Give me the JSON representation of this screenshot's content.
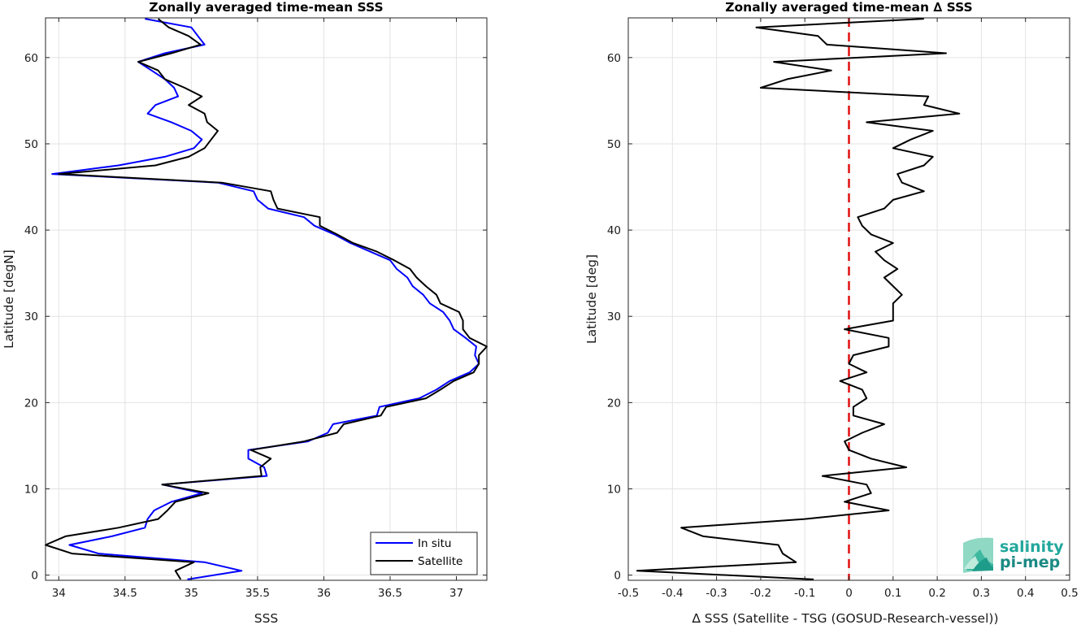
{
  "logo": {
    "line1": "salinity",
    "line2": "pi-mep"
  },
  "chart_data": [
    {
      "type": "line",
      "title": "Zonally averaged time-mean SSS",
      "xlabel": "SSS",
      "ylabel": "Latitude [degN]",
      "xlim": [
        33.9,
        37.23
      ],
      "ylim": [
        -0.6,
        64.6
      ],
      "xticks": [
        34,
        34.5,
        35,
        35.5,
        36,
        36.5,
        37
      ],
      "xtick_labels": [
        "34",
        "34.5",
        "35",
        "35.5",
        "36",
        "36.5",
        "37"
      ],
      "yticks": [
        0,
        10,
        20,
        30,
        40,
        50,
        60
      ],
      "ytick_labels": [
        "0",
        "10",
        "20",
        "30",
        "40",
        "50",
        "60"
      ],
      "grid": true,
      "legend": "bottom-right",
      "series": [
        {
          "name": "In situ",
          "color": "#0000ff",
          "points": [
            [
              34.97,
              -0.5
            ],
            [
              35.38,
              0.5
            ],
            [
              35.1,
              1.5
            ],
            [
              34.3,
              2.5
            ],
            [
              34.08,
              3.5
            ],
            [
              34.4,
              4.5
            ],
            [
              34.65,
              5.5
            ],
            [
              34.67,
              6.5
            ],
            [
              34.72,
              7.5
            ],
            [
              34.85,
              8.5
            ],
            [
              35.08,
              9.5
            ],
            [
              34.78,
              10.5
            ],
            [
              35.57,
              11.5
            ],
            [
              35.55,
              12.5
            ],
            [
              35.43,
              13.5
            ],
            [
              35.43,
              14.5
            ],
            [
              35.88,
              15.5
            ],
            [
              36.03,
              16.5
            ],
            [
              36.07,
              17.5
            ],
            [
              36.4,
              18.5
            ],
            [
              36.42,
              19.5
            ],
            [
              36.72,
              20.5
            ],
            [
              36.85,
              21.5
            ],
            [
              36.95,
              22.5
            ],
            [
              37.1,
              23.5
            ],
            [
              37.17,
              24.5
            ],
            [
              37.14,
              25.5
            ],
            [
              37.15,
              26.5
            ],
            [
              37.07,
              27.5
            ],
            [
              36.98,
              28.5
            ],
            [
              36.95,
              29.5
            ],
            [
              36.9,
              30.5
            ],
            [
              36.8,
              31.5
            ],
            [
              36.75,
              32.5
            ],
            [
              36.67,
              33.5
            ],
            [
              36.63,
              34.5
            ],
            [
              36.55,
              35.5
            ],
            [
              36.5,
              36.5
            ],
            [
              36.35,
              37.5
            ],
            [
              36.2,
              38.5
            ],
            [
              36.08,
              39.5
            ],
            [
              35.93,
              40.5
            ],
            [
              35.85,
              41.5
            ],
            [
              35.58,
              42.5
            ],
            [
              35.5,
              43.5
            ],
            [
              35.47,
              44.5
            ],
            [
              35.2,
              45.5
            ],
            [
              33.95,
              46.5
            ],
            [
              34.45,
              47.5
            ],
            [
              34.8,
              48.5
            ],
            [
              35.02,
              49.5
            ],
            [
              35.08,
              50.5
            ],
            [
              35.0,
              51.5
            ],
            [
              34.85,
              52.5
            ],
            [
              34.67,
              53.5
            ],
            [
              34.73,
              54.5
            ],
            [
              34.9,
              55.5
            ],
            [
              34.87,
              56.5
            ],
            [
              34.8,
              57.5
            ],
            [
              34.7,
              58.5
            ],
            [
              34.6,
              59.5
            ],
            [
              34.8,
              60.5
            ],
            [
              35.1,
              61.5
            ],
            [
              35.05,
              62.5
            ],
            [
              35.0,
              63.5
            ],
            [
              34.65,
              64.5
            ]
          ]
        },
        {
          "name": "Satellite",
          "color": "#000000",
          "points": [
            [
              34.92,
              -0.5
            ],
            [
              34.88,
              0.5
            ],
            [
              35.02,
              1.5
            ],
            [
              34.1,
              2.5
            ],
            [
              33.9,
              3.5
            ],
            [
              34.05,
              4.5
            ],
            [
              34.45,
              5.5
            ],
            [
              34.75,
              6.5
            ],
            [
              34.82,
              7.5
            ],
            [
              34.88,
              8.5
            ],
            [
              35.13,
              9.5
            ],
            [
              34.78,
              10.5
            ],
            [
              35.53,
              11.5
            ],
            [
              35.52,
              12.5
            ],
            [
              35.6,
              13.5
            ],
            [
              35.45,
              14.5
            ],
            [
              35.85,
              15.5
            ],
            [
              36.1,
              16.5
            ],
            [
              36.15,
              17.5
            ],
            [
              36.43,
              18.5
            ],
            [
              36.47,
              19.5
            ],
            [
              36.77,
              20.5
            ],
            [
              36.88,
              21.5
            ],
            [
              36.98,
              22.5
            ],
            [
              37.13,
              23.5
            ],
            [
              37.17,
              24.5
            ],
            [
              37.17,
              25.5
            ],
            [
              37.23,
              26.5
            ],
            [
              37.1,
              27.5
            ],
            [
              37.05,
              28.5
            ],
            [
              37.05,
              29.5
            ],
            [
              37.02,
              30.5
            ],
            [
              36.88,
              31.5
            ],
            [
              36.85,
              32.5
            ],
            [
              36.77,
              33.5
            ],
            [
              36.7,
              34.5
            ],
            [
              36.65,
              35.5
            ],
            [
              36.53,
              36.5
            ],
            [
              36.4,
              37.5
            ],
            [
              36.22,
              38.5
            ],
            [
              36.1,
              39.5
            ],
            [
              35.97,
              40.5
            ],
            [
              35.97,
              41.5
            ],
            [
              35.65,
              42.5
            ],
            [
              35.62,
              43.5
            ],
            [
              35.6,
              44.5
            ],
            [
              35.23,
              45.5
            ],
            [
              34.0,
              46.5
            ],
            [
              34.73,
              47.5
            ],
            [
              34.98,
              48.5
            ],
            [
              35.1,
              49.5
            ],
            [
              35.15,
              50.5
            ],
            [
              35.2,
              51.5
            ],
            [
              35.12,
              52.5
            ],
            [
              35.1,
              53.5
            ],
            [
              34.98,
              54.5
            ],
            [
              35.08,
              55.5
            ],
            [
              34.95,
              56.5
            ],
            [
              34.8,
              57.5
            ],
            [
              34.75,
              58.5
            ],
            [
              34.6,
              59.5
            ],
            [
              34.85,
              60.5
            ],
            [
              35.07,
              61.5
            ],
            [
              34.98,
              62.5
            ],
            [
              34.83,
              63.5
            ],
            [
              34.75,
              64.5
            ]
          ]
        }
      ]
    },
    {
      "type": "line",
      "title": "Zonally averaged time-mean ∆ SSS",
      "xlabel": "∆ SSS (Satellite - TSG (GOSUD-Research-vessel))",
      "ylabel": "Latitude [deg]",
      "xlim": [
        -0.5,
        0.5
      ],
      "ylim": [
        -0.6,
        64.6
      ],
      "xticks": [
        -0.5,
        -0.4,
        -0.3,
        -0.2,
        -0.1,
        0,
        0.1,
        0.2,
        0.3,
        0.4,
        0.5
      ],
      "xtick_labels": [
        "-0.5",
        "-0.4",
        "-0.3",
        "-0.2",
        "-0.1",
        "0",
        "0.1",
        "0.2",
        "0.3",
        "0.4",
        "0.5"
      ],
      "yticks": [
        0,
        10,
        20,
        30,
        40,
        50,
        60
      ],
      "ytick_labels": [
        "0",
        "10",
        "20",
        "30",
        "40",
        "50",
        "60"
      ],
      "grid": true,
      "reference_line": {
        "x": 0,
        "color": "#e01010",
        "style": "dashed"
      },
      "series": [
        {
          "color": "#000000",
          "points": [
            [
              -0.08,
              -0.5
            ],
            [
              -0.48,
              0.5
            ],
            [
              -0.12,
              1.5
            ],
            [
              -0.15,
              2.5
            ],
            [
              -0.16,
              3.5
            ],
            [
              -0.33,
              4.5
            ],
            [
              -0.38,
              5.5
            ],
            [
              -0.1,
              6.5
            ],
            [
              0.09,
              7.5
            ],
            [
              -0.01,
              8.5
            ],
            [
              0.05,
              9.5
            ],
            [
              0.04,
              10.5
            ],
            [
              -0.06,
              11.5
            ],
            [
              0.13,
              12.5
            ],
            [
              0.05,
              13.5
            ],
            [
              0.0,
              14.5
            ],
            [
              -0.01,
              15.5
            ],
            [
              0.03,
              16.5
            ],
            [
              0.08,
              17.5
            ],
            [
              0.01,
              18.5
            ],
            [
              0.01,
              19.5
            ],
            [
              0.04,
              20.5
            ],
            [
              0.03,
              21.5
            ],
            [
              -0.02,
              22.5
            ],
            [
              0.04,
              23.5
            ],
            [
              0.0,
              24.5
            ],
            [
              0.01,
              25.5
            ],
            [
              0.09,
              26.5
            ],
            [
              0.09,
              27.5
            ],
            [
              -0.01,
              28.5
            ],
            [
              0.1,
              29.5
            ],
            [
              0.1,
              30.5
            ],
            [
              0.1,
              31.5
            ],
            [
              0.12,
              32.5
            ],
            [
              0.1,
              33.5
            ],
            [
              0.08,
              34.5
            ],
            [
              0.11,
              35.5
            ],
            [
              0.08,
              36.5
            ],
            [
              0.06,
              37.5
            ],
            [
              0.1,
              38.5
            ],
            [
              0.05,
              39.5
            ],
            [
              0.03,
              40.5
            ],
            [
              0.02,
              41.5
            ],
            [
              0.08,
              42.5
            ],
            [
              0.1,
              43.5
            ],
            [
              0.17,
              44.5
            ],
            [
              0.12,
              45.5
            ],
            [
              0.11,
              46.5
            ],
            [
              0.17,
              47.5
            ],
            [
              0.19,
              48.5
            ],
            [
              0.1,
              49.5
            ],
            [
              0.14,
              50.5
            ],
            [
              0.19,
              51.5
            ],
            [
              0.04,
              52.5
            ],
            [
              0.25,
              53.5
            ],
            [
              0.17,
              54.5
            ],
            [
              0.18,
              55.5
            ],
            [
              -0.2,
              56.5
            ],
            [
              -0.14,
              57.5
            ],
            [
              -0.04,
              58.5
            ],
            [
              -0.17,
              59.5
            ],
            [
              0.22,
              60.5
            ],
            [
              -0.05,
              61.5
            ],
            [
              -0.07,
              62.5
            ],
            [
              -0.21,
              63.5
            ],
            [
              0.17,
              64.5
            ]
          ]
        }
      ]
    }
  ]
}
